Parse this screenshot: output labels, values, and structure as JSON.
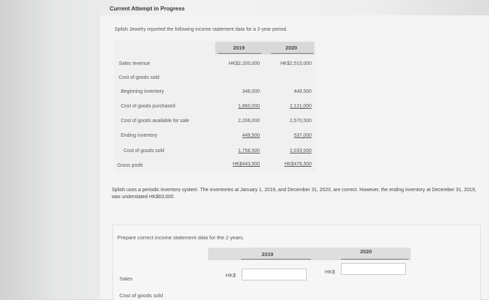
{
  "header": {
    "title": "Current Attempt in Progress"
  },
  "question": {
    "intro": "Splish Jewelry reported the following income statement data for a 2-year period.",
    "table": {
      "years": [
        "2019",
        "2020"
      ],
      "rows": [
        {
          "label": "Sales revenue",
          "v2019": "HK$2,200,000",
          "v2020": "HK$2,510,000"
        },
        {
          "label": "Cost of goods sold",
          "v2019": "",
          "v2020": ""
        },
        {
          "label": "Beginning inventory",
          "v2019": "346,000",
          "v2020": "449,500"
        },
        {
          "label": "Cost of goods purchased",
          "v2019": "1,860,000",
          "v2020": "2,121,000"
        },
        {
          "label": "Cost of goods available for sale",
          "v2019": "2,206,000",
          "v2020": "2,570,500"
        },
        {
          "label": "Ending inventory",
          "v2019": "449,500",
          "v2020": "537,000"
        },
        {
          "label": "Cost of goods sold",
          "v2019": "1,756,500",
          "v2020": "2,033,500"
        },
        {
          "label": "Gross profit",
          "v2019": "HK$443,500",
          "v2020": "HK$476,500"
        }
      ]
    },
    "note": "Splish uses a periodic inventory system. The inventories at January 1, 2019, and December 31, 2020, are correct. However, the ending inventory at December 31, 2019, was understated HK$63,000."
  },
  "answer": {
    "prompt": "Prepare correct income statement data for the 2 years.",
    "years": [
      "2019",
      "2020"
    ],
    "currency": "HK$",
    "rows": [
      {
        "label": "Sales",
        "v2019": "",
        "v2020": ""
      },
      {
        "label": "Cost of goods sold"
      }
    ]
  }
}
